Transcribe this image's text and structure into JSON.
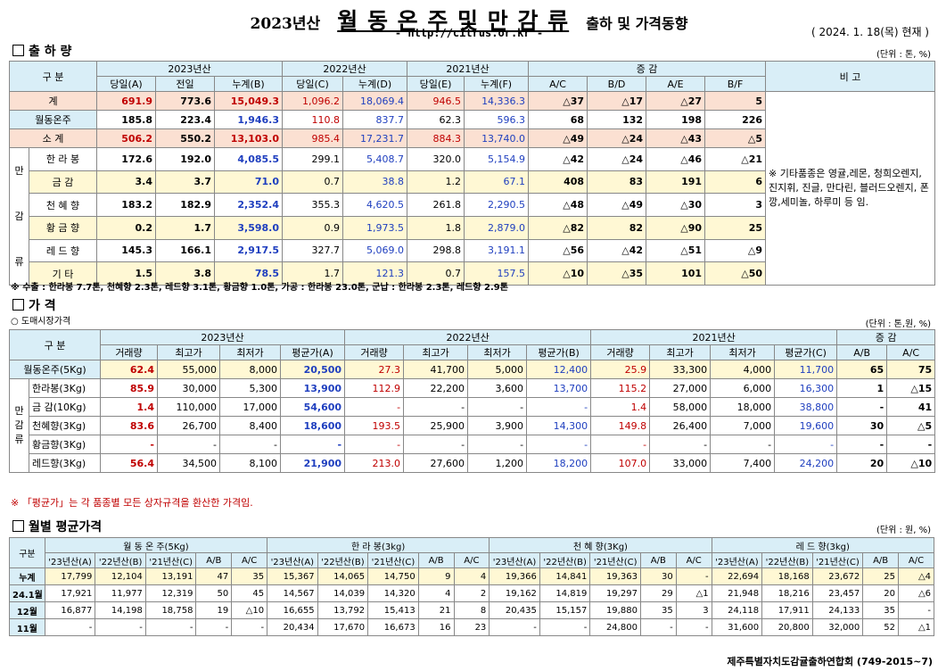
{
  "header": {
    "year": "2023년산",
    "title": "월 동 온 주 및 만 감 류",
    "subtitle": "출하 및 가격동향",
    "url": "- http://citrus.or.kr -",
    "date": "( 2024.  1. 18(목) 현재 )"
  },
  "shipment": {
    "section": "출 하 량",
    "unit": "(단위 : 톤, %)",
    "group_headers": [
      "구   분",
      "2023년산",
      "2022년산",
      "2021년산",
      "증   감",
      "비 고"
    ],
    "col_headers": [
      "당일(A)",
      "전일",
      "누계(B)",
      "당일(C)",
      "누계(D)",
      "당일(E)",
      "누계(F)",
      "A/C",
      "B/D",
      "A/E",
      "B/F"
    ],
    "category_chars": [
      "만",
      "감",
      "류"
    ],
    "rows": [
      {
        "label": "계",
        "v": [
          "691.9",
          "773.6",
          "15,049.3",
          "1,096.2",
          "18,069.4",
          "946.5",
          "14,336.3",
          "△37",
          "△17",
          "△27",
          "5"
        ]
      },
      {
        "label": "월동온주",
        "v": [
          "185.8",
          "223.4",
          "1,946.3",
          "110.8",
          "837.7",
          "62.3",
          "596.3",
          "68",
          "132",
          "198",
          "226"
        ]
      },
      {
        "label": "소    계",
        "v": [
          "506.2",
          "550.2",
          "13,103.0",
          "985.4",
          "17,231.7",
          "884.3",
          "13,740.0",
          "△49",
          "△24",
          "△43",
          "△5"
        ]
      },
      {
        "label": "한 라 봉",
        "v": [
          "172.6",
          "192.0",
          "4,085.5",
          "299.1",
          "5,408.7",
          "320.0",
          "5,154.9",
          "△42",
          "△24",
          "△46",
          "△21"
        ]
      },
      {
        "label": "금    감",
        "v": [
          "3.4",
          "3.7",
          "71.0",
          "0.7",
          "38.8",
          "1.2",
          "67.1",
          "408",
          "83",
          "191",
          "6"
        ]
      },
      {
        "label": "천 혜 향",
        "v": [
          "183.2",
          "182.9",
          "2,352.4",
          "355.3",
          "4,620.5",
          "261.8",
          "2,290.5",
          "△48",
          "△49",
          "△30",
          "3"
        ]
      },
      {
        "label": "황 금 향",
        "v": [
          "0.2",
          "1.7",
          "3,598.0",
          "0.9",
          "1,973.5",
          "1.8",
          "2,879.0",
          "△82",
          "82",
          "△90",
          "25"
        ]
      },
      {
        "label": "레 드 향",
        "v": [
          "145.3",
          "166.1",
          "2,917.5",
          "327.7",
          "5,069.0",
          "298.8",
          "3,191.1",
          "△56",
          "△42",
          "△51",
          "△9"
        ]
      },
      {
        "label": "기    타",
        "v": [
          "1.5",
          "3.8",
          "78.5",
          "1.7",
          "121.3",
          "0.7",
          "157.5",
          "△10",
          "△35",
          "101",
          "△50"
        ]
      }
    ],
    "remark": "※ 기타품종은 영귤,레몬, 청희오렌지, 진지휘, 진글, 만다린, 블러드오렌지, 폰깡,세미놀, 하루미 등 임.",
    "footnote": "※ 수출 : 한라봉 7.7톤, 천혜향 2.3톤, 레드향 3.1톤, 황금향 1.0톤, 가공 : 한라봉 23.0톤, 군납 : 한라봉 2.3톤, 레드향 2.9톤"
  },
  "price": {
    "section": "가    격",
    "subsection": "○ 도매시장가격",
    "unit": "(단위 : 톤,원, %)",
    "group_headers": [
      "구    분",
      "2023년산",
      "2022년산",
      "2021년산",
      "증    감"
    ],
    "col_headers": [
      "거래량",
      "최고가",
      "최저가",
      "평균가(A)",
      "거래량",
      "최고가",
      "최저가",
      "평균가(B)",
      "거래량",
      "최고가",
      "최저가",
      "평균가(C)",
      "A/B",
      "A/C"
    ],
    "category_chars": [
      "만",
      "감",
      "류"
    ],
    "rows": [
      {
        "label": "월동온주(5Kg)",
        "v": [
          "62.4",
          "55,000",
          "8,000",
          "20,500",
          "27.3",
          "41,700",
          "5,000",
          "12,400",
          "25.9",
          "33,300",
          "4,000",
          "11,700",
          "65",
          "75"
        ]
      },
      {
        "label": "한라봉(3Kg)",
        "v": [
          "85.9",
          "30,000",
          "5,300",
          "13,900",
          "112.9",
          "22,200",
          "3,600",
          "13,700",
          "115.2",
          "27,000",
          "6,000",
          "16,300",
          "1",
          "△15"
        ]
      },
      {
        "label": "금 감(10Kg)",
        "v": [
          "1.4",
          "110,000",
          "17,000",
          "54,600",
          "-",
          "-",
          "-",
          "-",
          "1.4",
          "58,000",
          "18,000",
          "38,800",
          "-",
          "41"
        ]
      },
      {
        "label": "천혜향(3Kg)",
        "v": [
          "83.6",
          "26,700",
          "8,400",
          "18,600",
          "193.5",
          "25,900",
          "3,900",
          "14,300",
          "149.8",
          "26,400",
          "7,000",
          "19,600",
          "30",
          "△5"
        ]
      },
      {
        "label": "황금향(3Kg)",
        "v": [
          "-",
          "-",
          "-",
          "-",
          "-",
          "-",
          "-",
          "-",
          "-",
          "-",
          "-",
          "-",
          "-",
          "-"
        ]
      },
      {
        "label": "레드향(3Kg)",
        "v": [
          "56.4",
          "34,500",
          "8,100",
          "21,900",
          "213.0",
          "27,600",
          "1,200",
          "18,200",
          "107.0",
          "33,000",
          "7,400",
          "24,200",
          "20",
          "△10"
        ]
      }
    ],
    "note": "※ 「평균가」는 각 품종별 모든 상자규격을 환산한 가격임."
  },
  "monthly": {
    "section": "월별 평균가격",
    "unit": "(단위 : 원, %)",
    "group_headers": [
      "구분",
      "월 동 온 주(5Kg)",
      "한    라    봉(3kg)",
      "천    혜    향(3Kg)",
      "레    드    향(3kg)"
    ],
    "col_headers": [
      "'23년산(A)",
      "'22년산(B)",
      "'21년산(C)",
      "A/B",
      "A/C"
    ],
    "rows": [
      {
        "label": "누계",
        "v": [
          "17,799",
          "12,104",
          "13,191",
          "47",
          "35",
          "15,367",
          "14,065",
          "14,750",
          "9",
          "4",
          "19,366",
          "14,841",
          "19,363",
          "30",
          "-",
          "22,694",
          "18,168",
          "23,672",
          "25",
          "△4"
        ]
      },
      {
        "label": "24.1월",
        "v": [
          "17,921",
          "11,977",
          "12,319",
          "50",
          "45",
          "14,567",
          "14,039",
          "14,320",
          "4",
          "2",
          "19,162",
          "14,819",
          "19,297",
          "29",
          "△1",
          "21,948",
          "18,216",
          "23,457",
          "20",
          "△6"
        ]
      },
      {
        "label": "12월",
        "v": [
          "16,877",
          "14,198",
          "18,758",
          "19",
          "△10",
          "16,655",
          "13,792",
          "15,413",
          "21",
          "8",
          "20,435",
          "15,157",
          "19,880",
          "35",
          "3",
          "24,118",
          "17,911",
          "24,133",
          "35",
          "-"
        ]
      },
      {
        "label": "11월",
        "v": [
          "-",
          "-",
          "-",
          "-",
          "-",
          "20,434",
          "17,670",
          "16,673",
          "16",
          "23",
          "-",
          "-",
          "24,800",
          "-",
          "-",
          "31,600",
          "20,800",
          "32,000",
          "52",
          "△1"
        ]
      }
    ],
    "footer": "제주특별자치도감귤출하연합회 (749-2015~7)"
  },
  "colors": {
    "header_bg": "#d9eef7",
    "pink_row": "#fbe0d2",
    "yellow_row": "#fff8d4",
    "red_text": "#c00000",
    "blue_text": "#1f3fbf"
  }
}
